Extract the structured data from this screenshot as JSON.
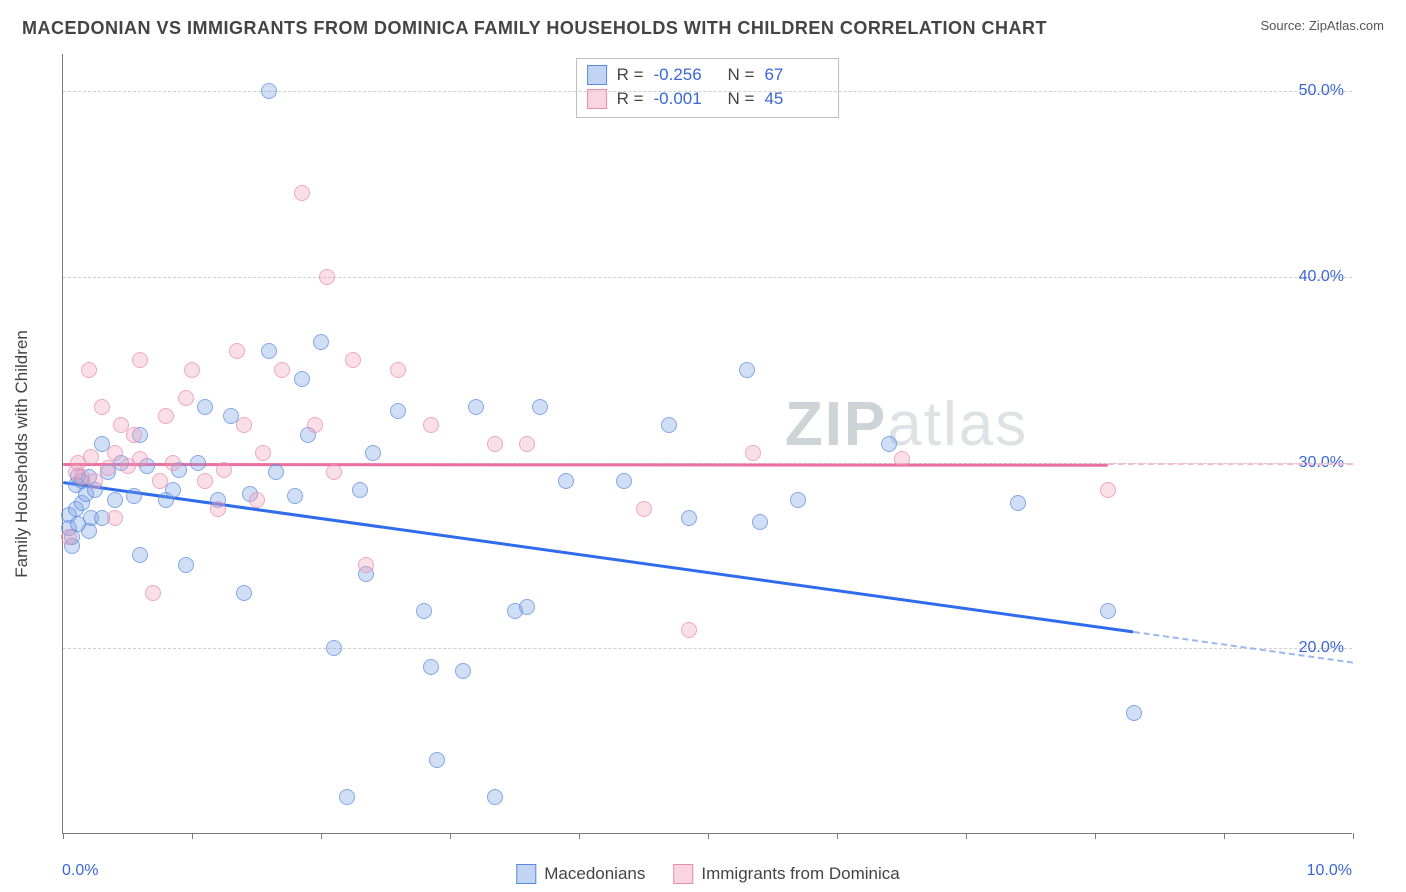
{
  "header": {
    "title": "MACEDONIAN VS IMMIGRANTS FROM DOMINICA FAMILY HOUSEHOLDS WITH CHILDREN CORRELATION CHART",
    "source_prefix": "Source: ",
    "source_name": "ZipAtlas.com"
  },
  "watermark": {
    "part1": "ZIP",
    "part2": "atlas"
  },
  "chart": {
    "type": "scatter",
    "ylabel": "Family Households with Children",
    "xlim": [
      0,
      10
    ],
    "ylim": [
      10,
      52
    ],
    "x_ticks": [
      {
        "v": 0.0,
        "label": "0.0%"
      },
      {
        "v": 10.0,
        "label": "10.0%"
      }
    ],
    "x_tick_marks": [
      0,
      1,
      2,
      3,
      4,
      5,
      6,
      7,
      8,
      9,
      10
    ],
    "y_ticks": [
      {
        "v": 20,
        "label": "20.0%"
      },
      {
        "v": 30,
        "label": "30.0%"
      },
      {
        "v": 40,
        "label": "40.0%"
      },
      {
        "v": 50,
        "label": "50.0%"
      }
    ],
    "grid_color": "#cfcfcf",
    "background_color": "#ffffff",
    "series": [
      {
        "id": "s0",
        "name": "Macedonians",
        "marker_color": "#76a0e4",
        "marker_border": "#5a8be0",
        "R": "-0.256",
        "N": "67",
        "trend": {
          "x1": 0.0,
          "y1": 29.0,
          "x2": 10.0,
          "y2": 19.3,
          "solid_until_x": 8.3
        },
        "points": [
          [
            0.05,
            27.2
          ],
          [
            0.05,
            26.5
          ],
          [
            0.07,
            26.0
          ],
          [
            0.1,
            28.8
          ],
          [
            0.1,
            27.5
          ],
          [
            0.12,
            29.3
          ],
          [
            0.15,
            29.0
          ],
          [
            0.15,
            27.8
          ],
          [
            0.18,
            28.3
          ],
          [
            0.2,
            29.2
          ],
          [
            0.2,
            26.3
          ],
          [
            0.22,
            27.0
          ],
          [
            0.25,
            28.5
          ],
          [
            0.3,
            31.0
          ],
          [
            0.35,
            29.5
          ],
          [
            0.4,
            28.0
          ],
          [
            0.45,
            30.0
          ],
          [
            0.55,
            28.2
          ],
          [
            0.6,
            25.0
          ],
          [
            0.6,
            31.5
          ],
          [
            0.65,
            29.8
          ],
          [
            0.8,
            28.0
          ],
          [
            0.85,
            28.5
          ],
          [
            0.9,
            29.6
          ],
          [
            0.95,
            24.5
          ],
          [
            1.05,
            30.0
          ],
          [
            1.1,
            33.0
          ],
          [
            1.2,
            28.0
          ],
          [
            1.3,
            32.5
          ],
          [
            1.4,
            23.0
          ],
          [
            1.45,
            28.3
          ],
          [
            1.6,
            36.0
          ],
          [
            1.6,
            50.0
          ],
          [
            1.65,
            29.5
          ],
          [
            1.8,
            28.2
          ],
          [
            1.85,
            34.5
          ],
          [
            1.9,
            31.5
          ],
          [
            2.0,
            36.5
          ],
          [
            2.1,
            20.0
          ],
          [
            2.2,
            12.0
          ],
          [
            2.3,
            28.5
          ],
          [
            2.35,
            24.0
          ],
          [
            2.4,
            30.5
          ],
          [
            2.6,
            32.8
          ],
          [
            2.8,
            22.0
          ],
          [
            2.85,
            19.0
          ],
          [
            2.9,
            14.0
          ],
          [
            3.1,
            18.8
          ],
          [
            3.2,
            33.0
          ],
          [
            3.35,
            12.0
          ],
          [
            3.5,
            22.0
          ],
          [
            3.6,
            22.2
          ],
          [
            3.7,
            33.0
          ],
          [
            3.9,
            29.0
          ],
          [
            4.35,
            29.0
          ],
          [
            4.7,
            32.0
          ],
          [
            4.85,
            27.0
          ],
          [
            5.3,
            35.0
          ],
          [
            5.4,
            26.8
          ],
          [
            5.7,
            28.0
          ],
          [
            6.4,
            31.0
          ],
          [
            7.4,
            27.8
          ],
          [
            8.1,
            22.0
          ],
          [
            8.3,
            16.5
          ],
          [
            0.07,
            25.5
          ],
          [
            0.12,
            26.7
          ],
          [
            0.3,
            27.0
          ]
        ]
      },
      {
        "id": "s1",
        "name": "Immigrants from Dominica",
        "marker_color": "#f4a0b9",
        "marker_border": "#e98bad",
        "R": "-0.001",
        "N": "45",
        "trend": {
          "x1": 0.0,
          "y1": 30.0,
          "x2": 10.0,
          "y2": 29.95,
          "solid_until_x": 8.1
        },
        "points": [
          [
            0.05,
            26.0
          ],
          [
            0.1,
            29.5
          ],
          [
            0.12,
            30.0
          ],
          [
            0.15,
            29.2
          ],
          [
            0.2,
            35.0
          ],
          [
            0.22,
            30.3
          ],
          [
            0.25,
            29.0
          ],
          [
            0.3,
            33.0
          ],
          [
            0.35,
            29.7
          ],
          [
            0.4,
            30.5
          ],
          [
            0.4,
            27.0
          ],
          [
            0.45,
            32.0
          ],
          [
            0.5,
            29.8
          ],
          [
            0.55,
            31.5
          ],
          [
            0.6,
            30.2
          ],
          [
            0.6,
            35.5
          ],
          [
            0.7,
            23.0
          ],
          [
            0.75,
            29.0
          ],
          [
            0.8,
            32.5
          ],
          [
            0.85,
            30.0
          ],
          [
            0.95,
            33.5
          ],
          [
            1.0,
            35.0
          ],
          [
            1.1,
            29.0
          ],
          [
            1.2,
            27.5
          ],
          [
            1.25,
            29.6
          ],
          [
            1.35,
            36.0
          ],
          [
            1.4,
            32.0
          ],
          [
            1.5,
            28.0
          ],
          [
            1.55,
            30.5
          ],
          [
            1.7,
            35.0
          ],
          [
            1.85,
            44.5
          ],
          [
            1.95,
            32.0
          ],
          [
            2.05,
            40.0
          ],
          [
            2.1,
            29.5
          ],
          [
            2.25,
            35.5
          ],
          [
            2.35,
            24.5
          ],
          [
            2.6,
            35.0
          ],
          [
            2.85,
            32.0
          ],
          [
            3.35,
            31.0
          ],
          [
            3.6,
            31.0
          ],
          [
            4.5,
            27.5
          ],
          [
            4.85,
            21.0
          ],
          [
            5.35,
            30.5
          ],
          [
            6.5,
            30.2
          ],
          [
            8.1,
            28.5
          ]
        ]
      }
    ],
    "stats_legend_labels": {
      "R": "R =",
      "N": "N ="
    },
    "bottom_legend_order": [
      "s0",
      "s1"
    ]
  }
}
